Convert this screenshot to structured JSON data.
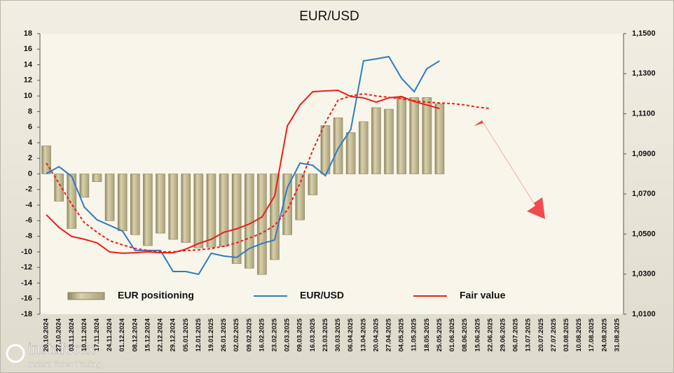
{
  "chart_data": {
    "type": "bar_line",
    "title": "EUR/USD",
    "logo": {
      "brand": "instaforex",
      "tagline": "Instant Forex Trading"
    },
    "legend_position": "bottom",
    "grid": false,
    "categories": [
      "20.10.2024",
      "27.10.2024",
      "03.11.2024",
      "10.11.2024",
      "17.11.2024",
      "24.11.2024",
      "01.12.2024",
      "08.12.2024",
      "15.12.2024",
      "22.12.2024",
      "29.12.2024",
      "05.01.2025",
      "12.01.2025",
      "19.01.2025",
      "26.01.2025",
      "02.02.2025",
      "09.02.2025",
      "16.02.2025",
      "23.02.2025",
      "02.03.2025",
      "09.03.2025",
      "16.03.2025",
      "23.03.2025",
      "30.03.2025",
      "06.04.2025",
      "13.04.2025",
      "20.04.2025",
      "27.04.2025",
      "04.05.2025",
      "11.05.2025",
      "18.05.2025",
      "25.05.2025",
      "01.06.2025",
      "08.06.2025",
      "15.06.2025",
      "22.06.2025",
      "29.06.2025",
      "06.07.2025",
      "13.07.2025",
      "20.07.2025",
      "27.07.2025",
      "03.08.2025",
      "10.08.2025",
      "17.08.2025",
      "24.08.2025",
      "31.08.2025"
    ],
    "ylim": [
      -18,
      18
    ],
    "yticks": [
      -18,
      -16,
      -14,
      -12,
      -10,
      -8,
      -6,
      -4,
      -2,
      0,
      2,
      4,
      6,
      8,
      10,
      12,
      14,
      16,
      18
    ],
    "y2lim": [
      1.01,
      1.15
    ],
    "y2ticks": [
      {
        "value": 1.01,
        "label": "1,0100"
      },
      {
        "value": 1.03,
        "label": "1,0300"
      },
      {
        "value": 1.05,
        "label": "1,0500"
      },
      {
        "value": 1.07,
        "label": "1,0700"
      },
      {
        "value": 1.09,
        "label": "1,0900"
      },
      {
        "value": 1.11,
        "label": "1,1100"
      },
      {
        "value": 1.13,
        "label": "1,1300"
      },
      {
        "value": 1.15,
        "label": "1,1500"
      }
    ],
    "series": [
      {
        "name": "EUR positioning",
        "kind": "bar",
        "axis": "y",
        "color": "#c2b98f",
        "values": [
          3.6,
          -3.5,
          -7.0,
          -3.0,
          -1.0,
          -6.0,
          -7.3,
          -7.8,
          -9.2,
          -7.6,
          -8.4,
          -8.8,
          -9.5,
          -9.4,
          -9.3,
          -11.5,
          -12.1,
          -12.9,
          -11.0,
          -7.8,
          -5.9,
          -2.7,
          6.2,
          7.2,
          5.3,
          6.7,
          8.5,
          8.3,
          9.8,
          9.8,
          9.8,
          9.0,
          null,
          null,
          null,
          null,
          null,
          null,
          null,
          null,
          null,
          null,
          null,
          null,
          null,
          null
        ]
      },
      {
        "name": "EUR/USD",
        "kind": "line",
        "axis": "y2",
        "color": "#2e7cc4",
        "values": [
          1.0802,
          1.0836,
          1.0788,
          1.0634,
          1.0571,
          1.0543,
          1.0515,
          1.0418,
          1.0418,
          1.0418,
          1.0313,
          1.0313,
          1.0299,
          1.0404,
          1.039,
          1.0383,
          1.0428,
          1.0453,
          1.047,
          1.0732,
          1.0854,
          1.0843,
          1.0791,
          1.0927,
          1.1022,
          1.1364,
          1.1374,
          1.1385,
          1.1277,
          1.121,
          1.1325,
          1.1364,
          null,
          null,
          null,
          null,
          null,
          null,
          null,
          null,
          null,
          null,
          null,
          null,
          null,
          null
        ]
      },
      {
        "name": "Fair value",
        "kind": "line",
        "axis": "y2",
        "color": "#ee1c1c",
        "values": [
          1.0596,
          1.0533,
          1.0488,
          1.0474,
          1.0456,
          1.0411,
          1.0404,
          1.0407,
          1.0411,
          1.0407,
          1.0407,
          1.0425,
          1.0453,
          1.0474,
          1.0509,
          1.0526,
          1.055,
          1.0585,
          1.069,
          1.1039,
          1.1144,
          1.121,
          1.1214,
          1.1217,
          1.1186,
          1.1179,
          1.1158,
          1.1179,
          1.1186,
          1.1161,
          1.1144,
          1.1126,
          null,
          null,
          null,
          null,
          null,
          null,
          null,
          null,
          null,
          null,
          null,
          null,
          null,
          null
        ]
      },
      {
        "kind": "dashed-line",
        "axis": "y2",
        "color": "#ee1c1c",
        "values": [
          1.0854,
          1.0753,
          1.0649,
          1.0557,
          1.0509,
          1.0467,
          1.0446,
          1.0428,
          1.0418,
          1.0411,
          1.0411,
          1.0418,
          1.0421,
          1.0428,
          1.0439,
          1.0456,
          1.048,
          1.0505,
          1.0543,
          1.062,
          1.0753,
          1.0917,
          1.1056,
          1.1168,
          1.1189,
          1.12,
          1.1189,
          1.1182,
          1.1175,
          1.1165,
          1.1158,
          1.1154,
          1.1151,
          1.1144,
          1.1133,
          1.1126,
          null,
          null,
          null,
          null,
          null,
          null,
          null,
          null,
          null,
          null
        ]
      }
    ]
  }
}
